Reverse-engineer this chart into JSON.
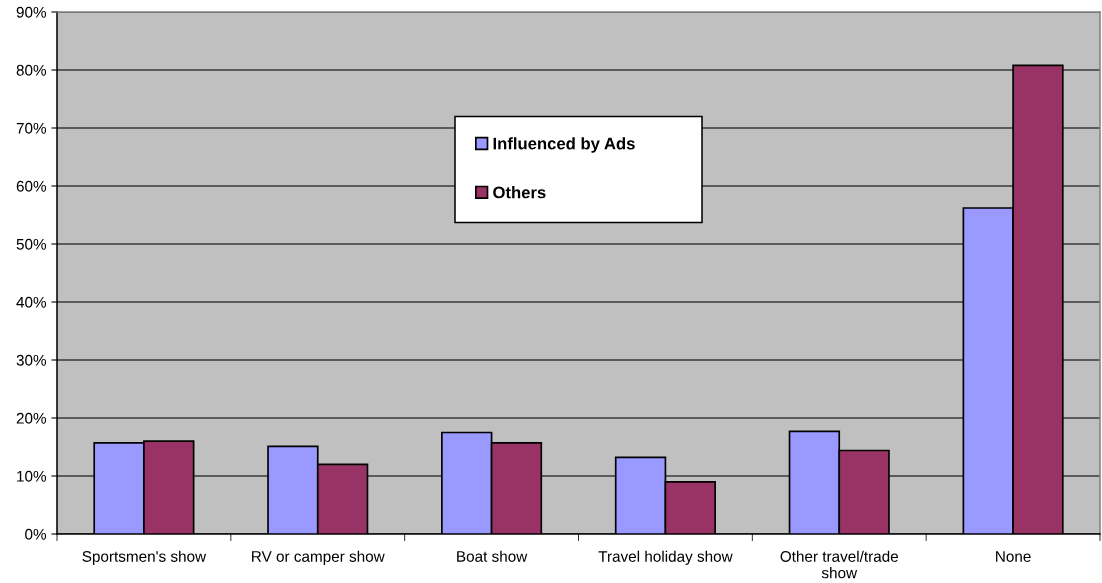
{
  "chart_data": {
    "type": "bar",
    "categories": [
      "Sportsmen's show",
      "RV or camper show",
      "Boat show",
      "Travel holiday show",
      "Other travel/trade show",
      "None"
    ],
    "series": [
      {
        "name": "Influenced by Ads",
        "color": "#9999ff",
        "values": [
          15.7,
          15.1,
          17.5,
          13.2,
          17.7,
          56.2
        ]
      },
      {
        "name": "Others",
        "color": "#993366",
        "values": [
          16.0,
          12.0,
          15.7,
          9.0,
          14.4,
          80.8
        ]
      }
    ],
    "ylim": [
      0,
      90
    ],
    "yticks": [
      {
        "value": 0,
        "label": "0%"
      },
      {
        "value": 10,
        "label": "10%"
      },
      {
        "value": 20,
        "label": "20%"
      },
      {
        "value": 30,
        "label": "30%"
      },
      {
        "value": 40,
        "label": "40%"
      },
      {
        "value": 50,
        "label": "50%"
      },
      {
        "value": 60,
        "label": "60%"
      },
      {
        "value": 70,
        "label": "70%"
      },
      {
        "value": 80,
        "label": "80%"
      },
      {
        "value": 90,
        "label": "90%"
      }
    ],
    "grid": "y",
    "legend": "top"
  }
}
